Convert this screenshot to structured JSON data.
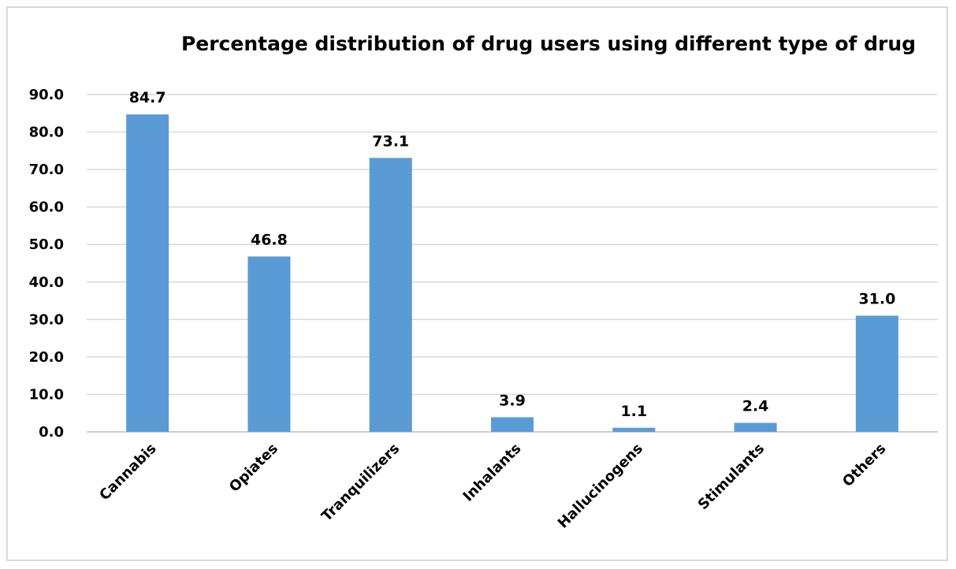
{
  "chart_data": {
    "type": "bar",
    "title": "Percentage distribution of drug users using different type of drug",
    "xlabel": "",
    "ylabel": "",
    "categories": [
      "Cannabis",
      "Opiates",
      "Tranquilizers",
      "Inhalants",
      "Hallucinogens",
      "Stimulants",
      "Others"
    ],
    "values": [
      84.7,
      46.8,
      73.1,
      3.9,
      1.1,
      2.4,
      31.0
    ],
    "data_labels": [
      "84.7",
      "46.8",
      "73.1",
      "3.9",
      "1.1",
      "2.4",
      "31.0"
    ],
    "ylim": [
      0,
      90
    ],
    "yticks": [
      "0.0",
      "10.0",
      "20.0",
      "30.0",
      "40.0",
      "50.0",
      "60.0",
      "70.0",
      "80.0",
      "90.0"
    ],
    "grid": true,
    "legend": "none",
    "bar_color": "#5b9bd5"
  }
}
